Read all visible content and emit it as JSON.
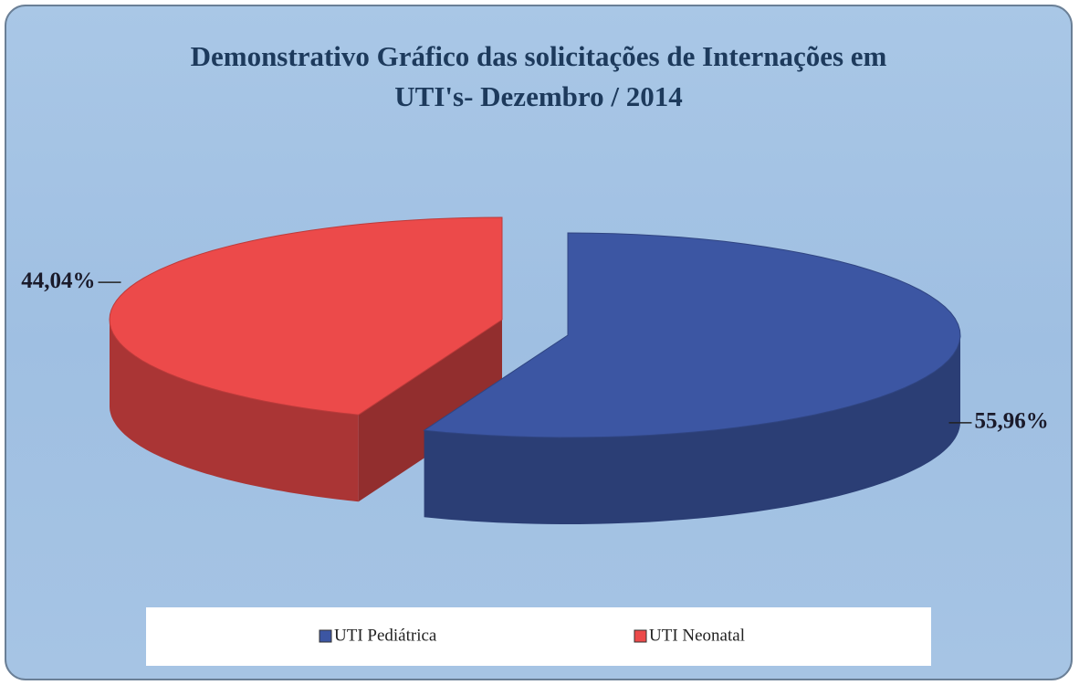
{
  "chart_data": {
    "type": "pie3d",
    "title": "Demonstrativo Gráfico das solicitações de Internações em UTI's- Dezembro / 2014",
    "categories": [
      "UTI Pediátrica",
      "UTI Neonatal"
    ],
    "values": [
      55.96,
      44.04
    ],
    "value_labels": [
      "55,96%",
      "44,04%"
    ],
    "colors": [
      "#3c56a3",
      "#ec4a4a"
    ],
    "legend": "bottom"
  }
}
